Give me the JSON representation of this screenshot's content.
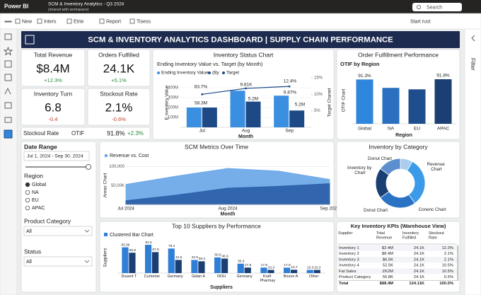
{
  "app": {
    "name": "Power BI",
    "report_title": "SCM & Inventory Analytics - Q3 2024",
    "report_subtitle": "(shared with workspace)",
    "search": "Search"
  },
  "toolbar": {
    "items": [
      "New",
      "Inters",
      "Etrie",
      "Report",
      "Tisess"
    ],
    "right": "Start rust"
  },
  "filter_pane": {
    "label": "Filter"
  },
  "dashboard_title": "SCM & INVENTORY ANALYTICS DASHBOARD | SUPPLY CHAIN PERFORMANCE",
  "kpis": [
    {
      "label": "Total Revenue",
      "value": "$8.4M",
      "change": "+12.3%"
    },
    {
      "label": "Orders Fulfilled",
      "value": "24.1K",
      "change": "+5.1%"
    },
    {
      "label": "Inventory Turn",
      "value": "6.8",
      "change": "-0.4"
    },
    {
      "label": "Stockout Rate",
      "value": "2.1%",
      "change": "-0.6%"
    }
  ],
  "otif_row": {
    "label_1": "Stockout Rate",
    "label_2": "OTIF",
    "value": "91.8%",
    "change": "+2.3%"
  },
  "charts": {
    "inventory_status": {
      "type": "bar",
      "title": "Inventory Status Chart",
      "subtitle": "Ending Inventory Value vs. Target (by Month)",
      "categories": [
        "Jul",
        "Aug",
        "Sep"
      ],
      "series": [
        {
          "name": "Ending Inventory Value",
          "color": "#3b8fe0",
          "values": [
            200000000,
            370000000,
            320000000
          ]
        },
        {
          "name": "(By",
          "color": "#1d4a87",
          "values": [
            200000000,
            260000000,
            170000000
          ]
        },
        {
          "name": "Target",
          "type": "line",
          "axis": "y2",
          "color": "#1d4a87",
          "values": [
            10,
            11.8,
            12.4
          ]
        }
      ],
      "ylim": [
        0,
        500000000
      ],
      "yticks": [
        {
          "value": 100000000,
          "label": "100M"
        },
        {
          "value": 200000000,
          "label": "200M"
        },
        {
          "value": 300000000,
          "label": "300M"
        },
        {
          "value": 400000000,
          "label": "400M"
        }
      ],
      "y2lim": [
        0,
        15
      ],
      "y2ticks": [
        {
          "value": 5,
          "label": "5%"
        },
        {
          "value": 10,
          "label": "10%"
        },
        {
          "value": 15,
          "label": "15%"
        }
      ],
      "y_label": "E nventory Value",
      "y2_label": "Target Chanet",
      "x_label": "Month",
      "annotations": [
        "83.7%",
        "9.81K",
        "12.4%",
        "58.3M",
        "5.2M",
        "9.87%",
        "5.2M"
      ]
    },
    "order_fulfillment": {
      "type": "bar",
      "title": "Order Fulfillment Performance",
      "subtitle": "OTIF by Region",
      "categories": [
        "Global",
        "NA",
        "EU",
        "APAC"
      ],
      "values": [
        91.3,
        74,
        71,
        91.8
      ],
      "value_labels": [
        "91.3%",
        null,
        null,
        "91.8%"
      ],
      "colors": [
        "#2f86dd",
        "#2a6fc0",
        "#1f4e8c",
        "#1b3f73"
      ],
      "y_label": "OTIF Chart",
      "x_label": "Region"
    },
    "scm_metrics": {
      "type": "area",
      "title": "SCM Metrics Over Time",
      "legend": "Revenue vs. Cost",
      "categories": [
        "Jul 2024",
        null,
        "Aug 2024",
        null,
        "Sep 2024"
      ],
      "series": [
        {
          "color": "#6aa7e8",
          "values": [
            53000,
            75000,
            95000,
            88000,
            66000
          ]
        },
        {
          "color": "#2b5ea8",
          "values": [
            10000,
            25000,
            43000,
            48000,
            55000
          ]
        }
      ],
      "ylim": [
        0,
        125000
      ],
      "yticks": [
        {
          "value": 50000,
          "label": "50,00K"
        },
        {
          "value": 100000,
          "label": "100,000"
        }
      ],
      "y_label": "Areas Chart",
      "x_label": "Month"
    },
    "top_suppliers": {
      "type": "bar",
      "title": "Top 10 Suppliers by Performance",
      "legend": "Clustered Bar Chart",
      "categories": [
        "Dusent T",
        "Curtomer",
        "Germany",
        "Gidan A",
        "NOH",
        "Germany",
        "Kraft Pharmay",
        "Bouon A",
        "Other"
      ],
      "series": [
        {
          "color": "#2f7fd6",
          "values": [
            83.36,
            91.6,
            79.4,
            42.5,
            50.6,
            30.3,
            17.8,
            17.5,
            10.3
          ]
        },
        {
          "color": "#1b3f73",
          "values": [
            65.9,
            67.9,
            42.5,
            38.2,
            46.9,
            17.8,
            10.3,
            10.7,
            10.3
          ]
        }
      ],
      "y_label": "Suppliers",
      "x_label": "Suppliers"
    },
    "inventory_by_category": {
      "type": "donut",
      "title": "Inventory by Category",
      "labels": [
        "Donut Chart",
        "Revenue Chart",
        "Conenc Chart",
        "Donut Chart",
        "Inventory by Chart"
      ],
      "values": [
        8,
        32,
        25,
        20,
        15
      ],
      "colors": [
        "#a9cdee",
        "#3b9be8",
        "#2a72c4",
        "#1b3f73",
        "#5c8fcf"
      ]
    }
  },
  "slicers": {
    "date_range": {
      "label": "Date Range",
      "value": "Jul 1, 2024 - Sep 30, 2024"
    },
    "region": {
      "label": "Region",
      "options": [
        "Global",
        "NA",
        "EU",
        "APAC"
      ],
      "selected": 0
    },
    "product_category": {
      "label": "Product Category",
      "value": "All"
    },
    "status": {
      "label": "Status",
      "value": "All"
    }
  },
  "kpi_table": {
    "title": "Key Inventory KPIs (Warehouse View)",
    "columns": [
      "Supplier",
      "Total Revenue",
      "Inventory Fulfilled",
      "Stockout Rate"
    ],
    "rows": [
      [
        "Inventory 1",
        "$2.4M",
        "24.1K",
        "12.3%"
      ],
      [
        "Inventory 2",
        "$8.4M",
        "24.1K",
        "2.1%"
      ],
      [
        "Inventory 3",
        "$6.5K",
        "24.1K",
        "2.1%"
      ],
      [
        "Inventory 4",
        "52.5K",
        "24.1K",
        "10.5%"
      ],
      [
        "Fat Sales",
        "ZK2M",
        "24.1K",
        "10.5%"
      ],
      [
        "Product Category",
        "56.8K",
        "24.1K",
        "6.5%"
      ]
    ],
    "total": [
      "Total",
      "$88.4M",
      "124.11K",
      "100.0%"
    ]
  }
}
